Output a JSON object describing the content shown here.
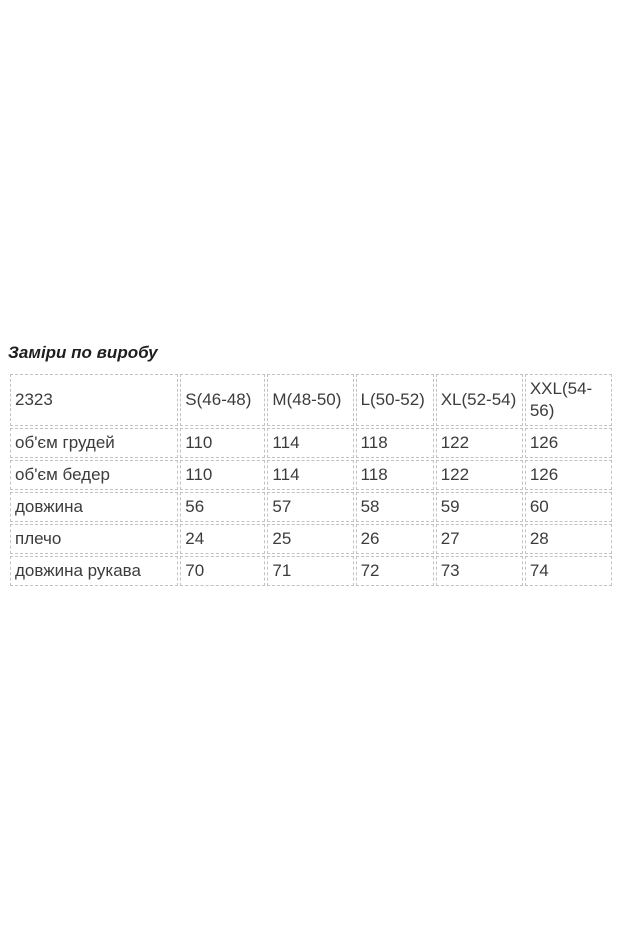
{
  "page": {
    "background": "#ffffff",
    "title": "Заміри по виробу"
  },
  "table": {
    "border_color": "#c2c2c2",
    "text_color": "#3c3c3c",
    "header_row": [
      "2323",
      "S(46-48)",
      "M(48-50)",
      "L(50-52)",
      "XL(52-54)",
      "XXL(54-56)"
    ],
    "rows": [
      {
        "label": "об'єм грудей",
        "values": [
          "110",
          "114",
          "118",
          "122",
          "126"
        ]
      },
      {
        "label": "об'єм бедер",
        "values": [
          "110",
          "114",
          "118",
          "122",
          "126"
        ]
      },
      {
        "label": "довжина",
        "values": [
          "56",
          "57",
          "58",
          "59",
          "60"
        ]
      },
      {
        "label": "плечо",
        "values": [
          "24",
          "25",
          "26",
          "27",
          "28"
        ]
      },
      {
        "label": "довжина рукава",
        "values": [
          "70",
          "71",
          "72",
          "73",
          "74"
        ]
      }
    ]
  }
}
